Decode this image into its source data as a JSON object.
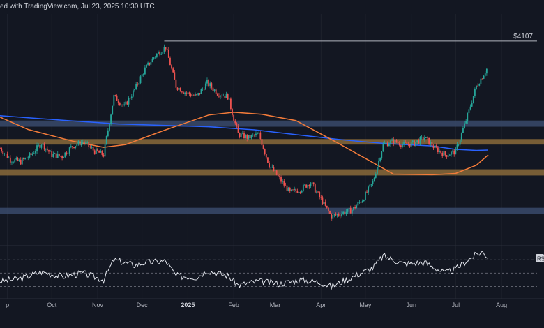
{
  "header": {
    "text": "ed with TradingView.com, Jul 23, 2025 10:30 UTC"
  },
  "chart_data": [
    {
      "type": "candlestick",
      "title": "",
      "x_ticks": [
        {
          "label": "p",
          "date": "2024-09-01"
        },
        {
          "label": "Oct",
          "date": "2024-10-01"
        },
        {
          "label": "Nov",
          "date": "2024-11-01"
        },
        {
          "label": "Dec",
          "date": "2024-12-01"
        },
        {
          "label": "2025",
          "date": "2025-01-01",
          "bold": true
        },
        {
          "label": "Feb",
          "date": "2025-02-01"
        },
        {
          "label": "Mar",
          "date": "2025-03-01"
        },
        {
          "label": "Apr",
          "date": "2025-04-01"
        },
        {
          "label": "May",
          "date": "2025-05-01"
        },
        {
          "label": "Jun",
          "date": "2025-06-01"
        },
        {
          "label": "Jul",
          "date": "2025-07-01"
        },
        {
          "label": "Aug",
          "date": "2025-08-01"
        }
      ],
      "x_range": [
        "2024-08-27",
        "2025-08-25"
      ],
      "y_range": [
        1250,
        4400
      ],
      "price_closes": [
        [
          "2024-08-27",
          2550
        ],
        [
          "2024-09-03",
          2380
        ],
        [
          "2024-09-10",
          2350
        ],
        [
          "2024-09-17",
          2450
        ],
        [
          "2024-09-24",
          2620
        ],
        [
          "2024-10-01",
          2450
        ],
        [
          "2024-10-08",
          2430
        ],
        [
          "2024-10-15",
          2580
        ],
        [
          "2024-10-22",
          2640
        ],
        [
          "2024-10-29",
          2520
        ],
        [
          "2024-11-05",
          2450
        ],
        [
          "2024-11-12",
          3300
        ],
        [
          "2024-11-19",
          3150
        ],
        [
          "2024-11-26",
          3400
        ],
        [
          "2024-12-03",
          3700
        ],
        [
          "2024-12-10",
          3900
        ],
        [
          "2024-12-17",
          4020
        ],
        [
          "2024-12-24",
          3450
        ],
        [
          "2024-12-31",
          3350
        ],
        [
          "2025-01-07",
          3300
        ],
        [
          "2025-01-14",
          3500
        ],
        [
          "2025-01-21",
          3350
        ],
        [
          "2025-01-28",
          3300
        ],
        [
          "2025-02-04",
          2750
        ],
        [
          "2025-02-11",
          2700
        ],
        [
          "2025-02-18",
          2750
        ],
        [
          "2025-02-25",
          2300
        ],
        [
          "2025-03-04",
          2100
        ],
        [
          "2025-03-11",
          1900
        ],
        [
          "2025-03-18",
          1950
        ],
        [
          "2025-03-25",
          2050
        ],
        [
          "2025-04-01",
          1800
        ],
        [
          "2025-04-08",
          1550
        ],
        [
          "2025-04-15",
          1600
        ],
        [
          "2025-04-22",
          1650
        ],
        [
          "2025-04-29",
          1800
        ],
        [
          "2025-05-06",
          2050
        ],
        [
          "2025-05-13",
          2600
        ],
        [
          "2025-05-20",
          2650
        ],
        [
          "2025-05-27",
          2600
        ],
        [
          "2025-06-03",
          2620
        ],
        [
          "2025-06-10",
          2700
        ],
        [
          "2025-06-17",
          2550
        ],
        [
          "2025-06-24",
          2450
        ],
        [
          "2025-07-01",
          2500
        ],
        [
          "2025-07-08",
          2950
        ],
        [
          "2025-07-15",
          3450
        ],
        [
          "2025-07-22",
          3700
        ]
      ],
      "series": [
        {
          "name": "",
          "color": "#2962ff",
          "values": [
            [
              "2024-08-27",
              3020
            ],
            [
              "2024-09-15",
              2990
            ],
            [
              "2024-10-15",
              2945
            ],
            [
              "2024-11-15",
              2900
            ],
            [
              "2024-12-15",
              2880
            ],
            [
              "2025-01-15",
              2860
            ],
            [
              "2025-02-15",
              2815
            ],
            [
              "2025-03-15",
              2745
            ],
            [
              "2025-04-15",
              2670
            ],
            [
              "2025-05-15",
              2615
            ],
            [
              "2025-06-15",
              2580
            ],
            [
              "2025-07-01",
              2530
            ],
            [
              "2025-07-15",
              2515
            ],
            [
              "2025-07-23",
              2520
            ]
          ]
        },
        {
          "name": "",
          "color": "#f57c3a",
          "values": [
            [
              "2024-08-27",
              3000
            ],
            [
              "2024-09-15",
              2820
            ],
            [
              "2024-10-15",
              2650
            ],
            [
              "2024-11-05",
              2560
            ],
            [
              "2024-11-20",
              2600
            ],
            [
              "2024-12-15",
              2800
            ],
            [
              "2025-01-15",
              3030
            ],
            [
              "2025-02-01",
              3070
            ],
            [
              "2025-02-20",
              3040
            ],
            [
              "2025-03-15",
              2950
            ],
            [
              "2025-04-10",
              2650
            ],
            [
              "2025-05-05",
              2350
            ],
            [
              "2025-05-20",
              2170
            ],
            [
              "2025-06-15",
              2160
            ],
            [
              "2025-07-01",
              2180
            ],
            [
              "2025-07-15",
              2300
            ],
            [
              "2025-07-23",
              2450
            ]
          ]
        }
      ],
      "zones": [
        {
          "from": 2860,
          "to": 2950,
          "color": "#3a4a6b"
        },
        {
          "from": 2600,
          "to": 2680,
          "color": "#8a6a3a"
        },
        {
          "from": 2150,
          "to": 2240,
          "color": "#8a6a3a"
        },
        {
          "from": 1590,
          "to": 1680,
          "color": "#3a4a6b"
        }
      ],
      "high_line": {
        "price": 4107,
        "label": "$4107",
        "from": "2024-12-16",
        "color": "#b2b5be"
      },
      "last_price": 3670
    },
    {
      "type": "line",
      "title": "",
      "y_range": [
        20,
        85
      ],
      "axis_label": "RS",
      "line_color": "#e6e9f0",
      "values": [
        [
          "2024-08-27",
          38
        ],
        [
          "2024-09-10",
          42
        ],
        [
          "2024-09-24",
          52
        ],
        [
          "2024-10-08",
          45
        ],
        [
          "2024-10-22",
          50
        ],
        [
          "2024-11-05",
          40
        ],
        [
          "2024-11-12",
          70
        ],
        [
          "2024-11-26",
          62
        ],
        [
          "2024-12-03",
          66
        ],
        [
          "2024-12-17",
          68
        ],
        [
          "2024-12-24",
          46
        ],
        [
          "2025-01-07",
          44
        ],
        [
          "2025-01-14",
          54
        ],
        [
          "2025-01-28",
          46
        ],
        [
          "2025-02-04",
          32
        ],
        [
          "2025-02-18",
          38
        ],
        [
          "2025-03-04",
          34
        ],
        [
          "2025-03-18",
          40
        ],
        [
          "2025-04-01",
          36
        ],
        [
          "2025-04-08",
          30
        ],
        [
          "2025-04-22",
          44
        ],
        [
          "2025-05-06",
          58
        ],
        [
          "2025-05-13",
          76
        ],
        [
          "2025-05-27",
          64
        ],
        [
          "2025-06-10",
          66
        ],
        [
          "2025-06-24",
          50
        ],
        [
          "2025-07-01",
          56
        ],
        [
          "2025-07-08",
          68
        ],
        [
          "2025-07-15",
          78
        ],
        [
          "2025-07-19",
          82
        ],
        [
          "2025-07-23",
          74
        ]
      ]
    }
  ]
}
